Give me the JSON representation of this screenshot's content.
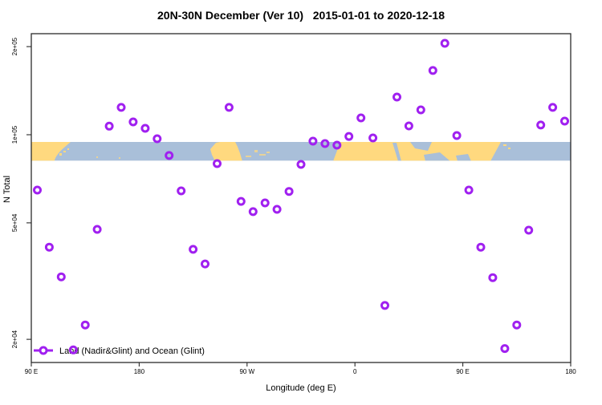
{
  "title": "20N-30N December (Ver 10)   2015-01-01 to 2020-12-18",
  "colors": {
    "marker": "#A020F0",
    "land": "#FFD97F",
    "ocean": "#A9BFD9",
    "axis": "#2b2b2b",
    "text": "#000000"
  },
  "legend": {
    "label": "Land (Nadir&Glint) and Ocean (Glint)"
  },
  "chart_data": {
    "type": "scatter",
    "title": "20N-30N December (Ver 10)   2015-01-01 to 2020-12-18",
    "xlabel": "Longitude (deg E)",
    "ylabel": "N Total",
    "y_scale": "log10",
    "grid": "off",
    "legend_position": "bottom-left",
    "marker_style": "open-circle-thick",
    "x_axis": {
      "ticks": [
        "90 E",
        "180",
        "90 W",
        "0",
        "90 E",
        "180"
      ],
      "tick_axis_deg": [
        90,
        180,
        270,
        360,
        450,
        540
      ],
      "axis_deg_range": [
        90,
        542
      ],
      "note": "longitude axis spans 450 deg: 90E eastward around the globe back to 180"
    },
    "y_axis": {
      "ticks": [
        "2e+05",
        "1e+05",
        "5e+04",
        "2e+04"
      ],
      "tick_values": [
        200000,
        100000,
        50000,
        20000
      ],
      "value_range": [
        16500,
        222000
      ]
    },
    "map_band": {
      "description": "20N-30N world map strip (land/ocean) drawn across the plot",
      "value_top": 94500,
      "value_bottom": 81500
    },
    "points": [
      {
        "axis_deg": 95,
        "lon": "95E",
        "n": 64700
      },
      {
        "axis_deg": 105,
        "lon": "105E",
        "n": 41300
      },
      {
        "axis_deg": 115,
        "lon": "115E",
        "n": 32700
      },
      {
        "axis_deg": 125,
        "lon": "125E",
        "n": 18400
      },
      {
        "axis_deg": 135,
        "lon": "135E",
        "n": 22400
      },
      {
        "axis_deg": 145,
        "lon": "145E",
        "n": 47500
      },
      {
        "axis_deg": 155,
        "lon": "155E",
        "n": 107000
      },
      {
        "axis_deg": 165,
        "lon": "165E",
        "n": 124000
      },
      {
        "axis_deg": 175,
        "lon": "175E",
        "n": 110600
      },
      {
        "axis_deg": 185,
        "lon": "175W",
        "n": 105200
      },
      {
        "axis_deg": 195,
        "lon": "165W",
        "n": 96900
      },
      {
        "axis_deg": 205,
        "lon": "155W",
        "n": 84900
      },
      {
        "axis_deg": 215,
        "lon": "145W",
        "n": 64300
      },
      {
        "axis_deg": 225,
        "lon": "135W",
        "n": 40600
      },
      {
        "axis_deg": 235,
        "lon": "125W",
        "n": 36200
      },
      {
        "axis_deg": 245,
        "lon": "115W",
        "n": 79700
      },
      {
        "axis_deg": 255,
        "lon": "105W",
        "n": 124000
      },
      {
        "axis_deg": 265,
        "lon": "95W",
        "n": 59200
      },
      {
        "axis_deg": 275,
        "lon": "85W",
        "n": 54600
      },
      {
        "axis_deg": 285,
        "lon": "75W",
        "n": 58500
      },
      {
        "axis_deg": 295,
        "lon": "65W",
        "n": 55600
      },
      {
        "axis_deg": 305,
        "lon": "55W",
        "n": 64000
      },
      {
        "axis_deg": 315,
        "lon": "45W",
        "n": 79200
      },
      {
        "axis_deg": 325,
        "lon": "35W",
        "n": 95100
      },
      {
        "axis_deg": 335,
        "lon": "25W",
        "n": 93300
      },
      {
        "axis_deg": 345,
        "lon": "15W",
        "n": 92100
      },
      {
        "axis_deg": 355,
        "lon": "5W",
        "n": 98700
      },
      {
        "axis_deg": 365,
        "lon": "5E",
        "n": 114200
      },
      {
        "axis_deg": 375,
        "lon": "15E",
        "n": 97500
      },
      {
        "axis_deg": 385,
        "lon": "25E",
        "n": 26100
      },
      {
        "axis_deg": 395,
        "lon": "35E",
        "n": 134500
      },
      {
        "axis_deg": 405,
        "lon": "45E",
        "n": 107200
      },
      {
        "axis_deg": 415,
        "lon": "55E",
        "n": 121600
      },
      {
        "axis_deg": 425,
        "lon": "65E",
        "n": 165700
      },
      {
        "axis_deg": 435,
        "lon": "75E",
        "n": 205300
      },
      {
        "axis_deg": 445,
        "lon": "85E",
        "n": 99400
      },
      {
        "axis_deg": 455,
        "lon": "95E",
        "n": 64700
      },
      {
        "axis_deg": 465,
        "lon": "105E",
        "n": 41300
      },
      {
        "axis_deg": 475,
        "lon": "115E",
        "n": 32500
      },
      {
        "axis_deg": 485,
        "lon": "125E",
        "n": 18600
      },
      {
        "axis_deg": 495,
        "lon": "135E",
        "n": 22400
      },
      {
        "axis_deg": 505,
        "lon": "145E",
        "n": 47200
      },
      {
        "axis_deg": 515,
        "lon": "155E",
        "n": 107900
      },
      {
        "axis_deg": 525,
        "lon": "165E",
        "n": 124000
      },
      {
        "axis_deg": 535,
        "lon": "175E",
        "n": 111300
      }
    ]
  }
}
